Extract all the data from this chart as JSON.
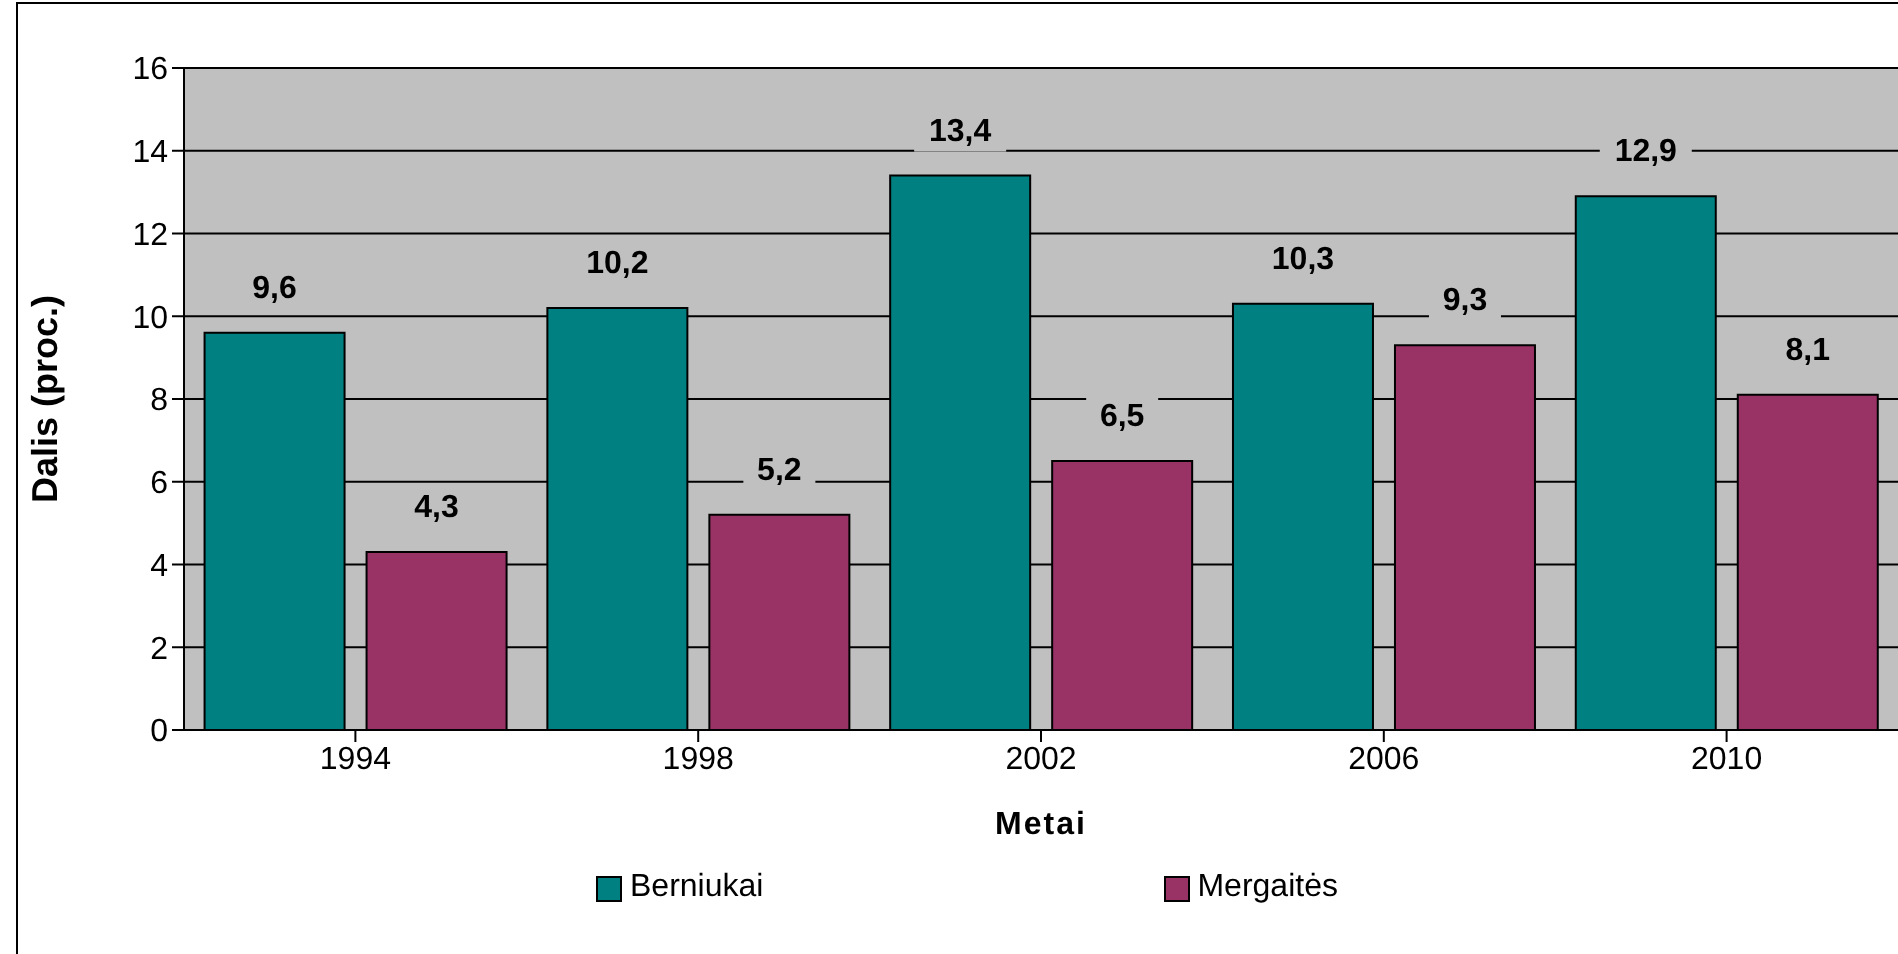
{
  "chart_data": {
    "type": "bar",
    "xlabel": "Metai",
    "ylabel": "Dalis (proc.)",
    "categories": [
      "1994",
      "1998",
      "2002",
      "2006",
      "2010"
    ],
    "series": [
      {
        "name": "Berniukai",
        "color": "#008080",
        "values": [
          9.6,
          10.2,
          13.4,
          10.3,
          12.9
        ],
        "value_labels": [
          "9,6",
          "10,2",
          "13,4",
          "10,3",
          "12,9"
        ]
      },
      {
        "name": "Mergaitės",
        "color": "#993366",
        "values": [
          4.3,
          5.2,
          6.5,
          9.3,
          8.1
        ],
        "value_labels": [
          "4,3",
          "5,2",
          "6,5",
          "9,3",
          "8,1"
        ]
      }
    ],
    "ylim": [
      0,
      16
    ],
    "yticks": [
      0,
      2,
      4,
      6,
      8,
      10,
      12,
      14,
      16
    ],
    "grid": "y",
    "legend": "bottom"
  }
}
